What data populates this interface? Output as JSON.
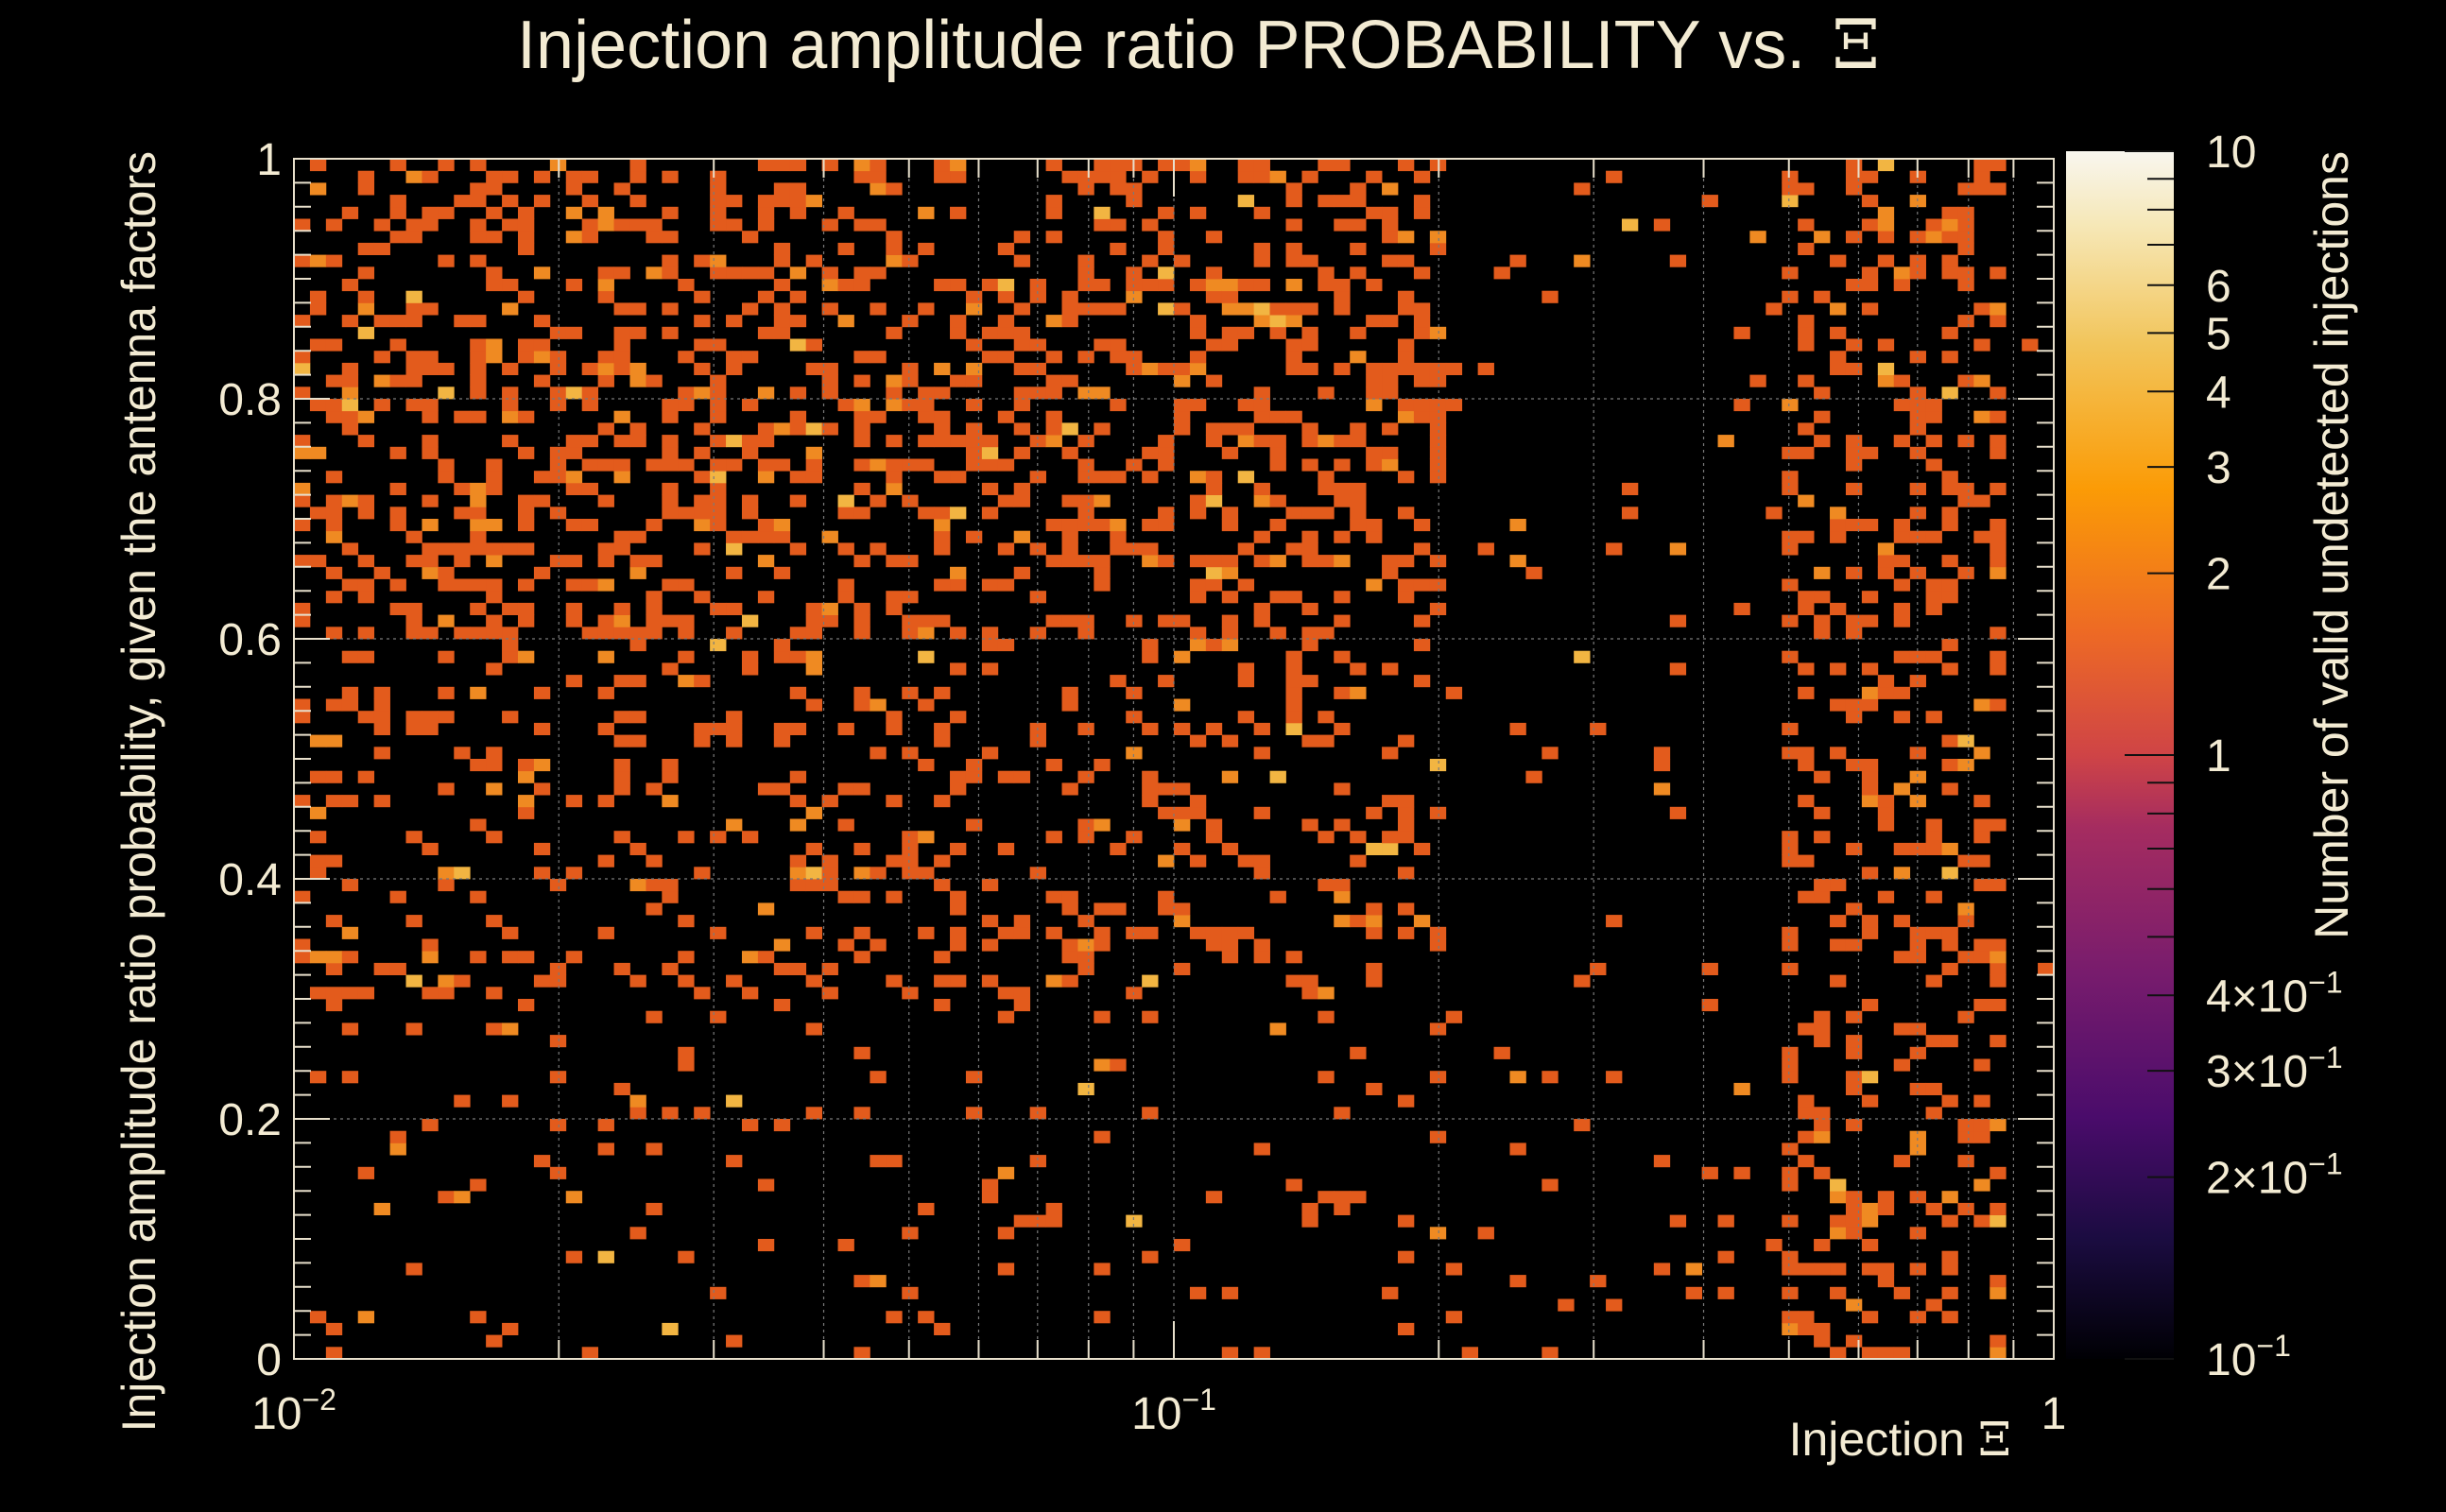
{
  "chart_data": {
    "type": "heatmap",
    "title": "Injection amplitude ratio PROBABILITY vs.",
    "title_symbol": "Ξ",
    "xlabel": "Injection",
    "xlabel_symbol": "Ξ",
    "ylabel": "Injection amplitude ratio probability, given the antenna factors",
    "zlabel": "Number of valid undetected injections",
    "x_scale": "log",
    "xlim": [
      0.01,
      1
    ],
    "ylim": [
      0,
      1
    ],
    "z_scale": "log",
    "zlim": [
      0.1,
      10
    ],
    "x_bins": 110,
    "y_bins": 100,
    "grid": true,
    "x_ticks": [
      {
        "value": 0.01,
        "base": "10",
        "exp": "−2"
      },
      {
        "value": 0.1,
        "base": "10",
        "exp": "−1"
      },
      {
        "value": 1,
        "base": "1",
        "exp": ""
      }
    ],
    "y_ticks": [
      {
        "value": 0,
        "label": "0"
      },
      {
        "value": 0.2,
        "label": "0.2"
      },
      {
        "value": 0.4,
        "label": "0.4"
      },
      {
        "value": 0.6,
        "label": "0.6"
      },
      {
        "value": 0.8,
        "label": "0.8"
      },
      {
        "value": 1,
        "label": "1"
      }
    ],
    "z_ticks": [
      {
        "value": 10,
        "label": "10"
      },
      {
        "value": 6,
        "label": "6"
      },
      {
        "value": 5,
        "label": "5"
      },
      {
        "value": 4,
        "label": "4"
      },
      {
        "value": 3,
        "label": "3"
      },
      {
        "value": 2,
        "label": "2"
      },
      {
        "value": 1,
        "label": "1"
      },
      {
        "value": 0.4,
        "label": "4×10",
        "exp": "−1"
      },
      {
        "value": 0.3,
        "label": "3×10",
        "exp": "−1"
      },
      {
        "value": 0.2,
        "label": "2×10",
        "exp": "−1"
      },
      {
        "value": 0.1,
        "label": "10",
        "exp": "−1"
      }
    ],
    "colormap": [
      "#000000",
      "#1b0c41",
      "#4a0c6b",
      "#781c6d",
      "#a52c60",
      "#cf4446",
      "#ed6925",
      "#fb9b06",
      "#f7d13d",
      "#fcffa4",
      "#f5f0e6"
    ],
    "density_profile": {
      "description": "counts mostly 1, some 2-3; dense at low Xi and high probability, and near Xi 0.5-0.9",
      "regions": [
        {
          "x_range": [
            0.01,
            0.2
          ],
          "y_range": [
            0.6,
            1
          ],
          "density": 0.34
        },
        {
          "x_range": [
            0.01,
            0.2
          ],
          "y_range": [
            0.3,
            0.6
          ],
          "density": 0.18
        },
        {
          "x_range": [
            0.01,
            0.2
          ],
          "y_range": [
            0,
            0.3
          ],
          "density": 0.07
        },
        {
          "x_range": [
            0.2,
            0.5
          ],
          "y_range": [
            0,
            1
          ],
          "density": 0.04
        },
        {
          "x_range": [
            0.5,
            0.9
          ],
          "y_range": [
            0,
            1
          ],
          "density": 0.28
        }
      ]
    }
  }
}
